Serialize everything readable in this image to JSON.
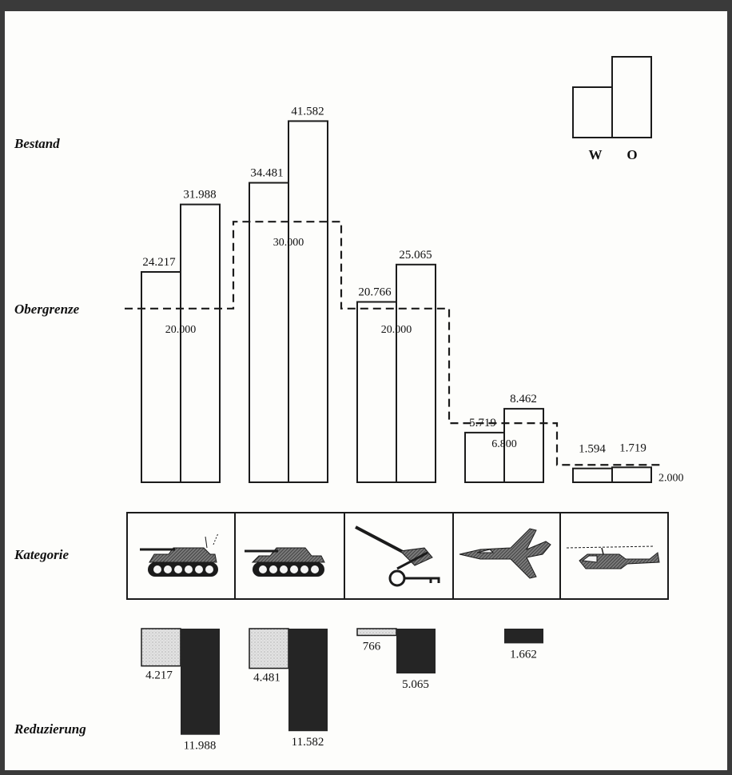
{
  "chart_data": {
    "type": "bar",
    "row_labels": {
      "stock": "Bestand",
      "ceiling": "Obergrenze",
      "category": "Kategorie",
      "reduction": "Reduzierung"
    },
    "legend": {
      "series": [
        "W",
        "O"
      ],
      "placement": "top-right"
    },
    "categories": [
      {
        "icon": "tank-icon",
        "w": "24.217",
        "o": "31.988",
        "w_value": 24217,
        "o_value": 31988,
        "ceiling": "20.000",
        "ceiling_value": 20000,
        "reduction_w": "4.217",
        "reduction_w_value": 4217,
        "reduction_o": "11.988",
        "reduction_o_value": 11988
      },
      {
        "icon": "armored-vehicle-icon",
        "w": "34.481",
        "o": "41.582",
        "w_value": 34481,
        "o_value": 41582,
        "ceiling": "30.000",
        "ceiling_value": 30000,
        "reduction_w": "4.481",
        "reduction_w_value": 4481,
        "reduction_o": "11.582",
        "reduction_o_value": 11582
      },
      {
        "icon": "artillery-icon",
        "w": "20.766",
        "o": "25.065",
        "w_value": 20766,
        "o_value": 25065,
        "ceiling": "20.000",
        "ceiling_value": 20000,
        "reduction_w": "766",
        "reduction_w_value": 766,
        "reduction_o": "5.065",
        "reduction_o_value": 5065
      },
      {
        "icon": "fighter-jet-icon",
        "w": "5.719",
        "o": "8.462",
        "w_value": 5719,
        "o_value": 8462,
        "ceiling": "6.800",
        "ceiling_value": 6800,
        "reduction_w": "",
        "reduction_w_value": 0,
        "reduction_o": "1.662",
        "reduction_o_value": 1662
      },
      {
        "icon": "helicopter-icon",
        "w": "1.594",
        "o": "1.719",
        "w_value": 1594,
        "o_value": 1719,
        "ceiling": "2.000",
        "ceiling_value": 2000,
        "reduction_w": "",
        "reduction_w_value": 0,
        "reduction_o": "",
        "reduction_o_value": 0
      }
    ],
    "colors": {
      "ink": "#1b1b1b",
      "west_reduction_fill": "#e2e2e2",
      "east_reduction_fill": "#252525"
    }
  }
}
